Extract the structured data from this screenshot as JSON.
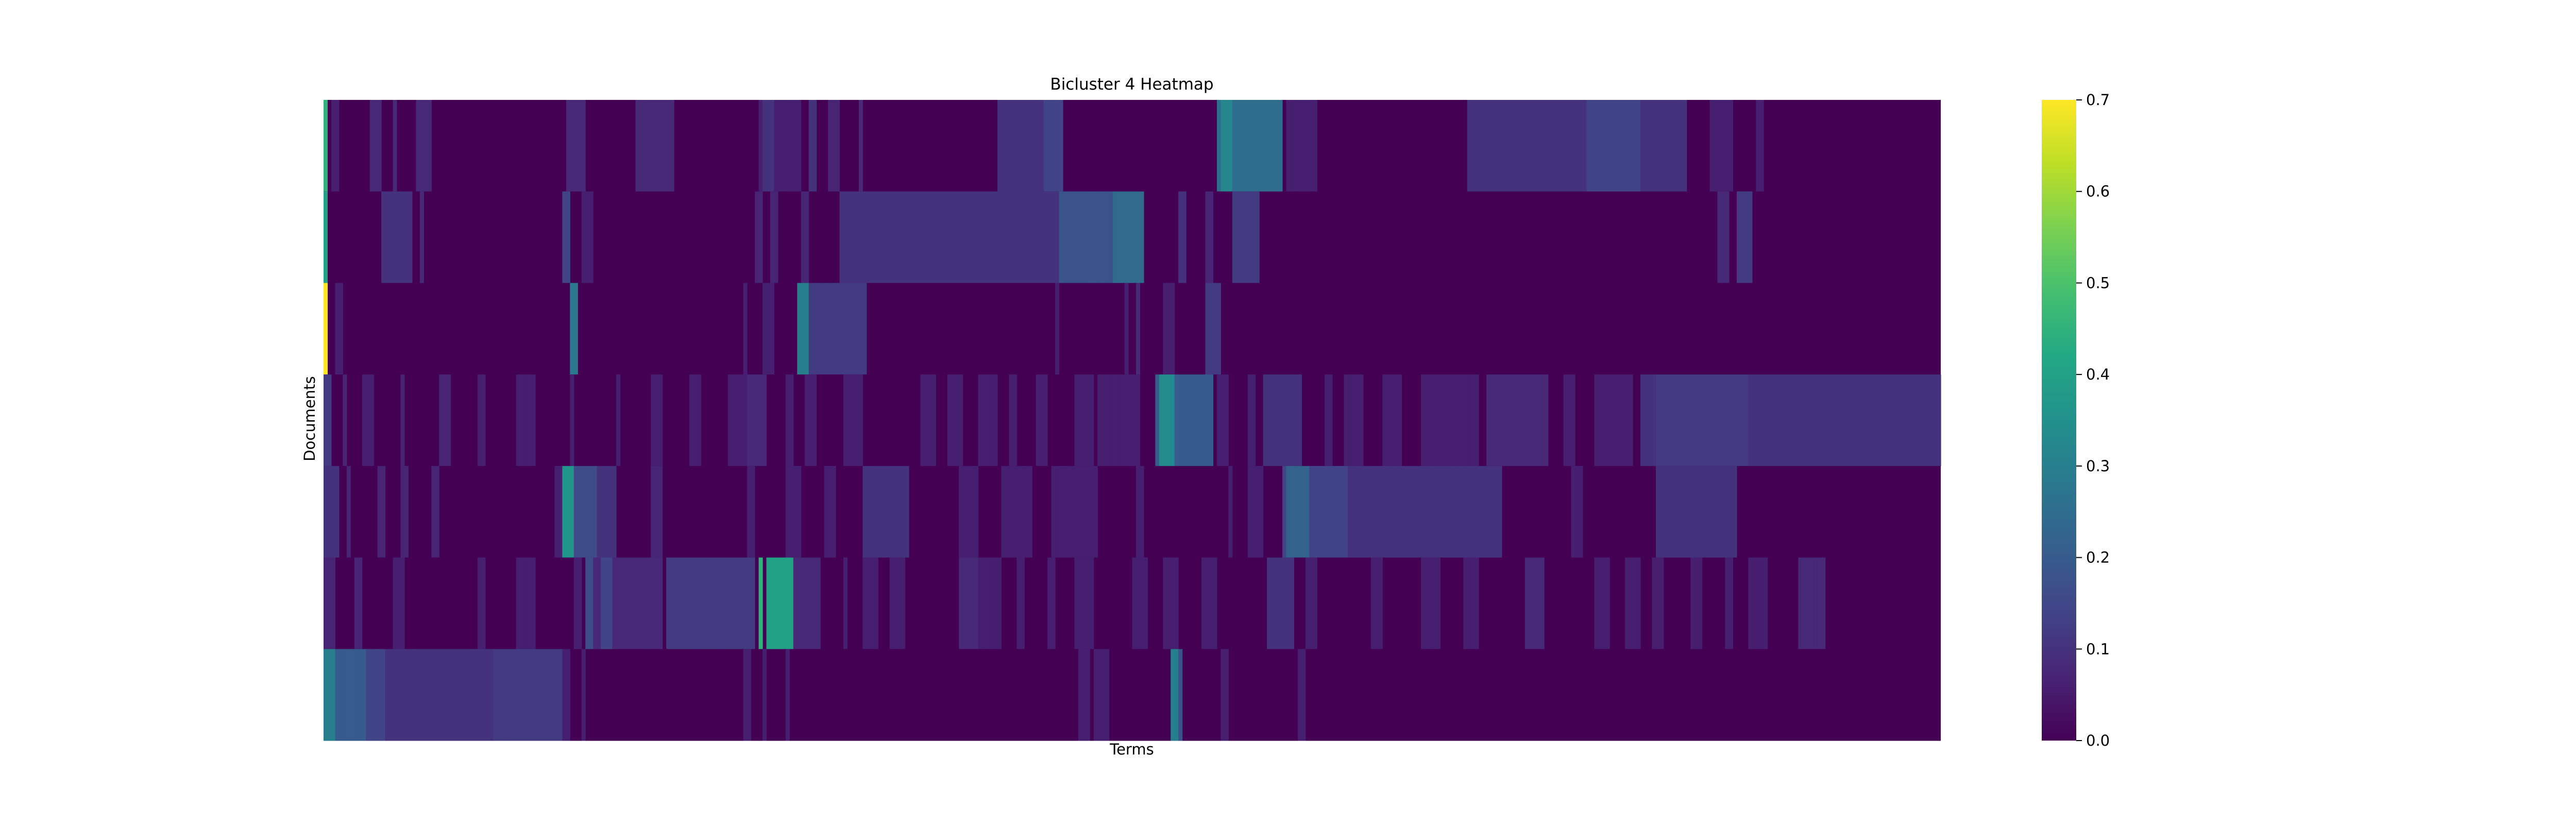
{
  "chart_data": {
    "type": "heatmap",
    "title": "Bicluster 4 Heatmap",
    "xlabel": "Terms",
    "ylabel": "Documents",
    "colormap": "viridis",
    "colorbar": {
      "vmin": 0.0,
      "vmax": 0.7,
      "ticks": [
        "0.0",
        "0.1",
        "0.2",
        "0.3",
        "0.4",
        "0.5",
        "0.6",
        "0.7"
      ]
    },
    "n_rows": 7,
    "n_cols": 420,
    "rows": [
      {
        "base": 0.0,
        "bands": [
          [
            0,
            1,
            0.45
          ],
          [
            2,
            4,
            0.06
          ],
          [
            12,
            15,
            0.08
          ],
          [
            18,
            19,
            0.08
          ],
          [
            24,
            28,
            0.08
          ],
          [
            63,
            68,
            0.08
          ],
          [
            81,
            91,
            0.08
          ],
          [
            113,
            124,
            0.06
          ],
          [
            114,
            117,
            0.1
          ],
          [
            126,
            128,
            0.1
          ],
          [
            131,
            134,
            0.07
          ],
          [
            139,
            140,
            0.08
          ],
          [
            175,
            192,
            0.1
          ],
          [
            187,
            192,
            0.14
          ],
          [
            232,
            249,
            0.25
          ],
          [
            233,
            236,
            0.32
          ],
          [
            250,
            258,
            0.06
          ],
          [
            297,
            354,
            0.1
          ],
          [
            328,
            342,
            0.14
          ],
          [
            360,
            366,
            0.06
          ],
          [
            372,
            374,
            0.06
          ]
        ]
      },
      {
        "base": 0.0,
        "bands": [
          [
            0,
            1,
            0.4
          ],
          [
            15,
            23,
            0.1
          ],
          [
            25,
            26,
            0.08
          ],
          [
            62,
            64,
            0.14
          ],
          [
            67,
            70,
            0.06
          ],
          [
            112,
            114,
            0.07
          ],
          [
            116,
            118,
            0.07
          ],
          [
            124,
            126,
            0.07
          ],
          [
            134,
            213,
            0.1
          ],
          [
            191,
            213,
            0.18
          ],
          [
            205,
            213,
            0.24
          ],
          [
            222,
            224,
            0.1
          ],
          [
            229,
            231,
            0.07
          ],
          [
            236,
            243,
            0.12
          ],
          [
            362,
            365,
            0.08
          ],
          [
            367,
            371,
            0.12
          ]
        ]
      },
      {
        "base": 0.0,
        "bands": [
          [
            0,
            1,
            0.7
          ],
          [
            3,
            5,
            0.06
          ],
          [
            64,
            66,
            0.28
          ],
          [
            109,
            110,
            0.06
          ],
          [
            114,
            117,
            0.06
          ],
          [
            123,
            125,
            0.06
          ],
          [
            123,
            141,
            0.12
          ],
          [
            123,
            126,
            0.3
          ],
          [
            190,
            191,
            0.06
          ],
          [
            208,
            209,
            0.06
          ],
          [
            211,
            212,
            0.08
          ],
          [
            218,
            221,
            0.06
          ],
          [
            229,
            233,
            0.12
          ]
        ]
      },
      {
        "base": 0.0,
        "bands": [
          [
            0,
            2,
            0.12
          ],
          [
            5,
            6,
            0.07
          ],
          [
            10,
            13,
            0.06
          ],
          [
            20,
            21,
            0.07
          ],
          [
            30,
            33,
            0.07
          ],
          [
            40,
            42,
            0.06
          ],
          [
            50,
            55,
            0.06
          ],
          [
            64,
            65,
            0.06
          ],
          [
            76,
            77,
            0.06
          ],
          [
            85,
            88,
            0.06
          ],
          [
            95,
            98,
            0.06
          ],
          [
            105,
            110,
            0.06
          ],
          [
            110,
            115,
            0.08
          ],
          [
            120,
            122,
            0.06
          ],
          [
            125,
            128,
            0.06
          ],
          [
            135,
            140,
            0.06
          ],
          [
            155,
            159,
            0.06
          ],
          [
            162,
            166,
            0.06
          ],
          [
            170,
            175,
            0.06
          ],
          [
            178,
            180,
            0.06
          ],
          [
            185,
            188,
            0.06
          ],
          [
            195,
            200,
            0.06
          ],
          [
            201,
            212,
            0.06
          ],
          [
            216,
            231,
            0.2
          ],
          [
            217,
            221,
            0.34
          ],
          [
            232,
            235,
            0.06
          ],
          [
            240,
            242,
            0.06
          ],
          [
            244,
            254,
            0.1
          ],
          [
            260,
            262,
            0.06
          ],
          [
            265,
            270,
            0.06
          ],
          [
            275,
            280,
            0.06
          ],
          [
            285,
            300,
            0.06
          ],
          [
            302,
            318,
            0.08
          ],
          [
            322,
            325,
            0.06
          ],
          [
            330,
            340,
            0.06
          ],
          [
            342,
            368,
            0.1
          ],
          [
            346,
            370,
            0.12
          ],
          [
            370,
            420,
            0.1
          ]
        ]
      },
      {
        "base": 0.0,
        "bands": [
          [
            0,
            4,
            0.1
          ],
          [
            6,
            7,
            0.07
          ],
          [
            14,
            16,
            0.07
          ],
          [
            20,
            22,
            0.07
          ],
          [
            28,
            30,
            0.07
          ],
          [
            60,
            62,
            0.06
          ],
          [
            62,
            65,
            0.36
          ],
          [
            65,
            71,
            0.16
          ],
          [
            71,
            76,
            0.1
          ],
          [
            85,
            88,
            0.07
          ],
          [
            110,
            112,
            0.06
          ],
          [
            120,
            124,
            0.06
          ],
          [
            130,
            133,
            0.06
          ],
          [
            140,
            152,
            0.1
          ],
          [
            165,
            170,
            0.06
          ],
          [
            176,
            184,
            0.06
          ],
          [
            189,
            201,
            0.06
          ],
          [
            211,
            213,
            0.06
          ],
          [
            235,
            236,
            0.06
          ],
          [
            240,
            244,
            0.06
          ],
          [
            249,
            266,
            0.14
          ],
          [
            250,
            256,
            0.22
          ],
          [
            266,
            306,
            0.1
          ],
          [
            324,
            327,
            0.06
          ],
          [
            346,
            367,
            0.1
          ]
        ]
      },
      {
        "base": 0.0,
        "bands": [
          [
            0,
            3,
            0.07
          ],
          [
            8,
            10,
            0.07
          ],
          [
            18,
            21,
            0.06
          ],
          [
            40,
            42,
            0.06
          ],
          [
            50,
            55,
            0.06
          ],
          [
            65,
            67,
            0.06
          ],
          [
            68,
            70,
            0.16
          ],
          [
            68,
            88,
            0.08
          ],
          [
            72,
            75,
            0.14
          ],
          [
            89,
            112,
            0.12
          ],
          [
            113,
            114,
            0.45
          ],
          [
            115,
            122,
            0.4
          ],
          [
            122,
            129,
            0.08
          ],
          [
            135,
            136,
            0.06
          ],
          [
            140,
            144,
            0.06
          ],
          [
            147,
            151,
            0.06
          ],
          [
            165,
            170,
            0.08
          ],
          [
            170,
            176,
            0.06
          ],
          [
            180,
            182,
            0.06
          ],
          [
            188,
            190,
            0.06
          ],
          [
            195,
            200,
            0.06
          ],
          [
            210,
            214,
            0.06
          ],
          [
            218,
            222,
            0.06
          ],
          [
            228,
            232,
            0.06
          ],
          [
            245,
            252,
            0.1
          ],
          [
            255,
            258,
            0.06
          ],
          [
            272,
            275,
            0.06
          ],
          [
            285,
            290,
            0.06
          ],
          [
            296,
            300,
            0.06
          ],
          [
            312,
            317,
            0.08
          ],
          [
            330,
            334,
            0.06
          ],
          [
            338,
            342,
            0.06
          ],
          [
            345,
            348,
            0.06
          ],
          [
            355,
            358,
            0.06
          ],
          [
            364,
            366,
            0.06
          ],
          [
            370,
            375,
            0.06
          ],
          [
            383,
            390,
            0.08
          ]
        ]
      },
      {
        "base": 0.0,
        "bands": [
          [
            0,
            3,
            0.3
          ],
          [
            3,
            11,
            0.2
          ],
          [
            11,
            16,
            0.14
          ],
          [
            16,
            44,
            0.1
          ],
          [
            44,
            62,
            0.12
          ],
          [
            62,
            64,
            0.06
          ],
          [
            67,
            68,
            0.06
          ],
          [
            109,
            111,
            0.06
          ],
          [
            114,
            115,
            0.06
          ],
          [
            120,
            121,
            0.06
          ],
          [
            196,
            199,
            0.06
          ],
          [
            200,
            204,
            0.06
          ],
          [
            220,
            222,
            0.3
          ],
          [
            222,
            223,
            0.18
          ],
          [
            233,
            235,
            0.06
          ],
          [
            253,
            255,
            0.06
          ]
        ]
      }
    ]
  }
}
